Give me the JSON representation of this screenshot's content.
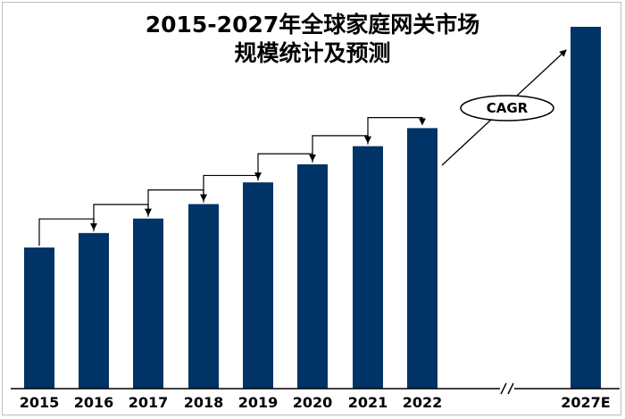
{
  "chart_data": {
    "type": "bar",
    "title_line1": "2015-2027年全球家庭网关市场",
    "title_line2": "规模统计及预测",
    "categories": [
      "2015",
      "2016",
      "2017",
      "2018",
      "2019",
      "2020",
      "2021",
      "2022",
      "2027E"
    ],
    "values": [
      39,
      43,
      47,
      51,
      57,
      62,
      67,
      72,
      100
    ],
    "ylim": [
      0,
      100
    ],
    "xlabel": "",
    "ylabel": "",
    "grid": false,
    "legend": "none",
    "axis_break_between": [
      "2022",
      "2027E"
    ],
    "annotation": "CAGR",
    "bar_color": "#003366"
  }
}
